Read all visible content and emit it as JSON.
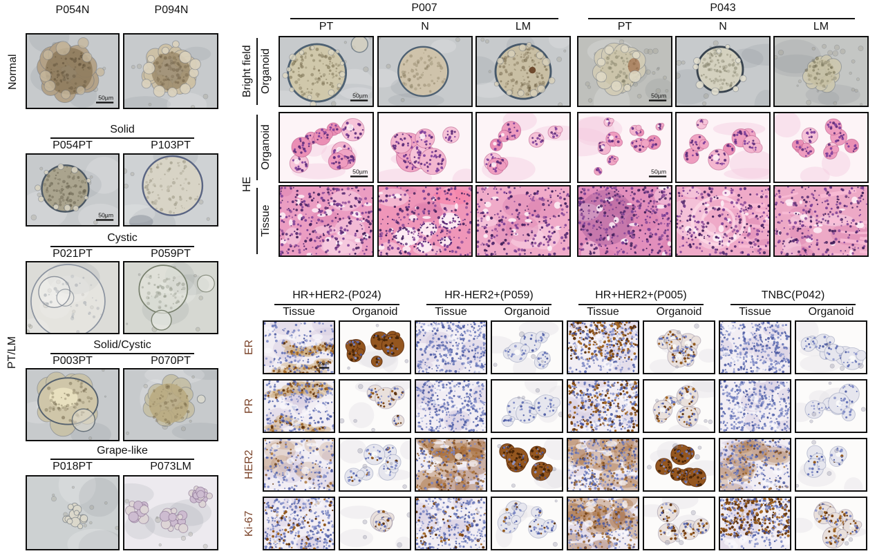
{
  "scale_bar_label": "50µm",
  "marker_label_color": "#7a4228",
  "left": {
    "normal_label": "Normal",
    "normal_items": [
      {
        "name": "P054N",
        "shape": "lobulated-dark",
        "scalebar": true
      },
      {
        "name": "P094N",
        "shape": "lobulated-light"
      }
    ],
    "ptlm_label": "PT/LM",
    "sections": [
      {
        "title": "Solid",
        "items": [
          {
            "name": "P054PT",
            "shape": "round-dark",
            "scalebar": true
          },
          {
            "name": "P103PT",
            "shape": "round-light"
          }
        ]
      },
      {
        "title": "Cystic",
        "items": [
          {
            "name": "P021PT",
            "shape": "cystic-large"
          },
          {
            "name": "P059PT",
            "shape": "cystic-pair"
          }
        ]
      },
      {
        "title": "Solid/Cystic",
        "items": [
          {
            "name": "P003PT",
            "shape": "irregular-large"
          },
          {
            "name": "P070PT",
            "shape": "irregular-round"
          }
        ]
      },
      {
        "title": "Grape-like",
        "items": [
          {
            "name": "P018PT",
            "shape": "grape-small"
          },
          {
            "name": "P073LM",
            "shape": "grape-multi"
          }
        ]
      }
    ]
  },
  "top_right": {
    "bf_outer_label": "Bright field",
    "bf_inner_label": "Organoid",
    "he_label": "HE",
    "he_inner_labels": [
      "Organoid",
      "Tissue"
    ],
    "groups": [
      {
        "title": "P007",
        "cols": [
          "PT",
          "N",
          "LM"
        ],
        "bright_field": [
          {
            "shape": "round-big",
            "scalebar": true
          },
          {
            "shape": "round-smooth"
          },
          {
            "shape": "round-textured"
          }
        ],
        "he_organoid": [
          {
            "variant": "many-medium",
            "scalebar": true
          },
          {
            "variant": "big-mixed"
          },
          {
            "variant": "scattered"
          }
        ],
        "he_tissue": [
          {
            "variant": "dense"
          },
          {
            "variant": "glandular"
          },
          {
            "variant": "soft"
          }
        ]
      },
      {
        "title": "P043",
        "cols": [
          "PT",
          "N",
          "LM"
        ],
        "bright_field": [
          {
            "shape": "lumpy",
            "scalebar": true
          },
          {
            "shape": "round-rough"
          },
          {
            "shape": "small-lumpy"
          }
        ],
        "he_organoid": [
          {
            "variant": "small-irregular",
            "scalebar": true
          },
          {
            "variant": "mixed-round"
          },
          {
            "variant": "chain"
          }
        ],
        "he_tissue": [
          {
            "variant": "dark-dense"
          },
          {
            "variant": "swirl"
          },
          {
            "variant": "fibrous"
          }
        ]
      }
    ]
  },
  "bottom_right": {
    "sub_col_labels": [
      "Tissue",
      "Organoid"
    ],
    "markers": [
      "ER",
      "PR",
      "HER2",
      "Ki-67"
    ],
    "groups": [
      {
        "title": "HR+HER2-(P024)",
        "rows": [
          [
            {
              "mode": "tissue",
              "blue": 1.5,
              "brown": 2,
              "style": "ribbon",
              "scalebar": true
            },
            {
              "mode": "organoid",
              "blue": 0.6,
              "brown": 2.6,
              "style": "solid"
            }
          ],
          [
            {
              "mode": "tissue",
              "blue": 2,
              "brown": 1,
              "style": "ribbon"
            },
            {
              "mode": "organoid",
              "blue": 1,
              "brown": 1.6,
              "style": "nuclear"
            }
          ],
          [
            {
              "mode": "tissue",
              "blue": 1.5,
              "brown": 0.7,
              "style": "diffuse"
            },
            {
              "mode": "organoid",
              "blue": 1.5,
              "brown": 0.4,
              "style": "nuclear"
            }
          ],
          [
            {
              "mode": "tissue",
              "blue": 2.5,
              "brown": 1,
              "style": "nuclear"
            },
            {
              "mode": "organoid",
              "blue": 1,
              "brown": 1,
              "style": "nuclear"
            }
          ]
        ]
      },
      {
        "title": "HR-HER2+(P059)",
        "rows": [
          [
            {
              "mode": "tissue",
              "blue": 3,
              "brown": 0,
              "style": "nuclear"
            },
            {
              "mode": "organoid",
              "blue": 2,
              "brown": 0,
              "style": "nuclear"
            }
          ],
          [
            {
              "mode": "tissue",
              "blue": 3,
              "brown": 0,
              "style": "nuclear"
            },
            {
              "mode": "organoid",
              "blue": 2,
              "brown": 0,
              "style": "nuclear"
            }
          ],
          [
            {
              "mode": "tissue",
              "blue": 1,
              "brown": 3,
              "style": "diffuse"
            },
            {
              "mode": "organoid",
              "blue": 0.8,
              "brown": 3,
              "style": "solid"
            }
          ],
          [
            {
              "mode": "tissue",
              "blue": 2.5,
              "brown": 0.8,
              "style": "nuclear"
            },
            {
              "mode": "organoid",
              "blue": 2,
              "brown": 0.5,
              "style": "nuclear"
            }
          ]
        ]
      },
      {
        "title": "HR+HER2+(P005)",
        "rows": [
          [
            {
              "mode": "tissue",
              "blue": 2,
              "brown": 2.4,
              "style": "nuclear"
            },
            {
              "mode": "organoid",
              "blue": 1.5,
              "brown": 2,
              "style": "nuclear"
            }
          ],
          [
            {
              "mode": "tissue",
              "blue": 2.2,
              "brown": 1.8,
              "style": "nuclear"
            },
            {
              "mode": "organoid",
              "blue": 1.5,
              "brown": 1.6,
              "style": "nuclear"
            }
          ],
          [
            {
              "mode": "tissue",
              "blue": 2,
              "brown": 2.4,
              "style": "diffuse"
            },
            {
              "mode": "organoid",
              "blue": 1,
              "brown": 2.6,
              "style": "solid"
            }
          ],
          [
            {
              "mode": "tissue",
              "blue": 1.5,
              "brown": 2.6,
              "style": "diffuse"
            },
            {
              "mode": "organoid",
              "blue": 1,
              "brown": 2.4,
              "style": "nuclear"
            }
          ]
        ]
      },
      {
        "title": "TNBC(P042)",
        "rows": [
          [
            {
              "mode": "tissue",
              "blue": 3,
              "brown": 0,
              "style": "nuclear"
            },
            {
              "mode": "organoid",
              "blue": 1.4,
              "brown": 0,
              "style": "nuclear"
            }
          ],
          [
            {
              "mode": "tissue",
              "blue": 3,
              "brown": 0,
              "style": "nuclear"
            },
            {
              "mode": "organoid",
              "blue": 1.4,
              "brown": 0,
              "style": "nuclear"
            }
          ],
          [
            {
              "mode": "tissue",
              "blue": 2,
              "brown": 1.5,
              "style": "diffuse"
            },
            {
              "mode": "organoid",
              "blue": 1.5,
              "brown": 0.2,
              "style": "nuclear"
            }
          ],
          [
            {
              "mode": "tissue",
              "blue": 2,
              "brown": 3,
              "style": "nuclear"
            },
            {
              "mode": "organoid",
              "blue": 1,
              "brown": 2.4,
              "style": "nuclear"
            }
          ]
        ]
      }
    ]
  }
}
